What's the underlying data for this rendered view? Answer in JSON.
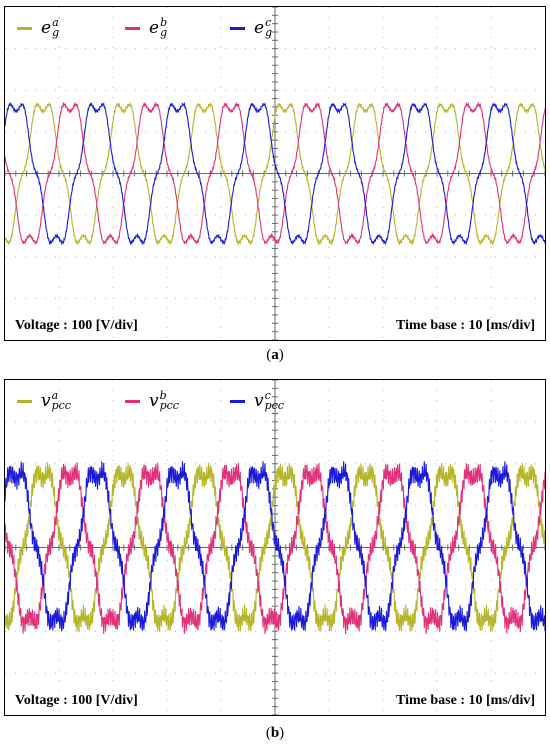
{
  "chart_data": [
    {
      "type": "line",
      "panel_caption": "a",
      "legend": [
        {
          "sym": "e",
          "sub": "g",
          "sup": "a",
          "color": "#b5b52a"
        },
        {
          "sym": "e",
          "sub": "g",
          "sup": "b",
          "color": "#e0307a"
        },
        {
          "sym": "e",
          "sub": "g",
          "sup": "c",
          "color": "#1a1ad8"
        }
      ],
      "voltage_label": "Voltage : 100 [V/div]",
      "timebase_label": "Time base : 10 [ms/div]",
      "divisions": {
        "x": 10,
        "y": 8
      },
      "amplitude_div": 1.7,
      "cycles": 6.7,
      "harmonic_5th": 0.12,
      "ripple": 0.015,
      "phase_offset_deg": [
        280,
        160,
        40
      ],
      "grid": true
    },
    {
      "type": "line",
      "panel_caption": "b",
      "legend": [
        {
          "sym": "v",
          "sub": "pcc",
          "sup": "a",
          "color": "#b5b52a"
        },
        {
          "sym": "v",
          "sub": "pcc",
          "sup": "b",
          "color": "#e0307a"
        },
        {
          "sym": "v",
          "sub": "pcc",
          "sup": "c",
          "color": "#1a1ad8"
        }
      ],
      "voltage_label": "Voltage : 100 [V/div]",
      "timebase_label": "Time base : 10 [ms/div]",
      "divisions": {
        "x": 10,
        "y": 8
      },
      "amplitude_div": 1.85,
      "cycles": 6.7,
      "harmonic_5th": 0.12,
      "ripple": 0.09,
      "phase_offset_deg": [
        280,
        160,
        40
      ],
      "grid": true
    }
  ]
}
